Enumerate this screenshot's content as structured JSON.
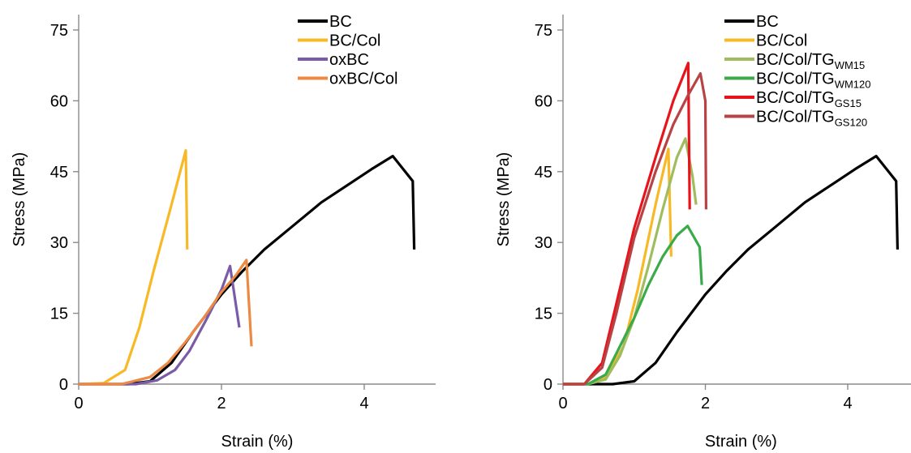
{
  "chart_data": [
    {
      "type": "line",
      "xlabel": "Strain (%)",
      "ylabel": "Stress (MPa)",
      "xlim": [
        0,
        5.0
      ],
      "ylim": [
        0,
        80
      ],
      "xticks": [
        0,
        2,
        4
      ],
      "yticks": [
        0,
        15,
        30,
        45,
        60,
        75
      ],
      "grid": false,
      "legend_position": "top-right",
      "series": [
        {
          "name": "BC",
          "color": "#000000",
          "points": [
            [
              0,
              0
            ],
            [
              0.7,
              0
            ],
            [
              1.0,
              0.6
            ],
            [
              1.3,
              4.5
            ],
            [
              1.6,
              11
            ],
            [
              2.0,
              19
            ],
            [
              2.3,
              24
            ],
            [
              2.6,
              28.5
            ],
            [
              3.0,
              33.5
            ],
            [
              3.4,
              38.5
            ],
            [
              3.8,
              42.5
            ],
            [
              4.1,
              45.5
            ],
            [
              4.4,
              48.3
            ],
            [
              4.68,
              43
            ],
            [
              4.7,
              28.5
            ]
          ]
        },
        {
          "name": "BC/Col",
          "color": "#f7b926",
          "points": [
            [
              0,
              0
            ],
            [
              0.35,
              0.2
            ],
            [
              0.65,
              3
            ],
            [
              0.85,
              12
            ],
            [
              1.05,
              24
            ],
            [
              1.3,
              38
            ],
            [
              1.5,
              49.5
            ],
            [
              1.52,
              28.5
            ]
          ]
        },
        {
          "name": "oxBC",
          "color": "#7a5ba8",
          "points": [
            [
              0,
              0
            ],
            [
              0.8,
              0
            ],
            [
              1.1,
              0.8
            ],
            [
              1.35,
              3
            ],
            [
              1.55,
              7
            ],
            [
              1.8,
              14
            ],
            [
              2.0,
              20
            ],
            [
              2.12,
              25
            ],
            [
              2.25,
              12
            ]
          ]
        },
        {
          "name": "oxBC/Col",
          "color": "#ec8a43",
          "points": [
            [
              0,
              0
            ],
            [
              0.6,
              0
            ],
            [
              1.0,
              1.5
            ],
            [
              1.25,
              4.5
            ],
            [
              1.5,
              9
            ],
            [
              1.75,
              14
            ],
            [
              2.0,
              19.5
            ],
            [
              2.2,
              23
            ],
            [
              2.35,
              26.3
            ],
            [
              2.42,
              8
            ]
          ]
        }
      ]
    },
    {
      "type": "line",
      "xlabel": "Strain (%)",
      "ylabel": "Stress (MPa)",
      "xlim": [
        0,
        5.0
      ],
      "ylim": [
        0,
        80
      ],
      "xticks": [
        0,
        2,
        4
      ],
      "yticks": [
        0,
        15,
        30,
        45,
        60,
        75
      ],
      "grid": false,
      "legend_position": "top-right",
      "series": [
        {
          "name": "BC",
          "color": "#000000",
          "points": [
            [
              0,
              0
            ],
            [
              0.7,
              0
            ],
            [
              1.0,
              0.6
            ],
            [
              1.3,
              4.5
            ],
            [
              1.6,
              11
            ],
            [
              2.0,
              19
            ],
            [
              2.3,
              24
            ],
            [
              2.6,
              28.5
            ],
            [
              3.0,
              33.5
            ],
            [
              3.4,
              38.5
            ],
            [
              3.8,
              42.5
            ],
            [
              4.1,
              45.5
            ],
            [
              4.4,
              48.3
            ],
            [
              4.68,
              43
            ],
            [
              4.7,
              28.5
            ]
          ]
        },
        {
          "name": "BC/Col",
          "color": "#f7b926",
          "points": [
            [
              0,
              0
            ],
            [
              0.35,
              0
            ],
            [
              0.6,
              1.5
            ],
            [
              0.85,
              8
            ],
            [
              1.05,
              20
            ],
            [
              1.3,
              38
            ],
            [
              1.48,
              49.8
            ],
            [
              1.52,
              27
            ]
          ]
        },
        {
          "name": "BC/Col/TG",
          "name_sub": "WM15",
          "color": "#9fbd5e",
          "points": [
            [
              0,
              0
            ],
            [
              0.35,
              0
            ],
            [
              0.6,
              1
            ],
            [
              0.8,
              6
            ],
            [
              1.0,
              14
            ],
            [
              1.2,
              25
            ],
            [
              1.4,
              37
            ],
            [
              1.6,
              48
            ],
            [
              1.72,
              52
            ],
            [
              1.82,
              44
            ],
            [
              1.87,
              38
            ]
          ]
        },
        {
          "name": "BC/Col/TG",
          "name_sub": "WM120",
          "color": "#3aaa4a",
          "points": [
            [
              0,
              0
            ],
            [
              0.35,
              0
            ],
            [
              0.6,
              2
            ],
            [
              0.8,
              8
            ],
            [
              1.0,
              14
            ],
            [
              1.2,
              21
            ],
            [
              1.4,
              27
            ],
            [
              1.6,
              31.5
            ],
            [
              1.75,
              33.5
            ],
            [
              1.92,
              29
            ],
            [
              1.95,
              21
            ]
          ]
        },
        {
          "name": "BC/Col/TG",
          "name_sub": "GS15",
          "color": "#e8141c",
          "points": [
            [
              0,
              0
            ],
            [
              0.3,
              0
            ],
            [
              0.55,
              4.5
            ],
            [
              0.75,
              17
            ],
            [
              1.0,
              33
            ],
            [
              1.3,
              48
            ],
            [
              1.55,
              60
            ],
            [
              1.76,
              68
            ],
            [
              1.78,
              37
            ]
          ]
        },
        {
          "name": "BC/Col/TG",
          "name_sub": "GS120",
          "color": "#b84345",
          "points": [
            [
              0,
              0
            ],
            [
              0.3,
              0
            ],
            [
              0.55,
              3.5
            ],
            [
              0.75,
              15
            ],
            [
              1.0,
              31
            ],
            [
              1.3,
              45
            ],
            [
              1.55,
              55
            ],
            [
              1.75,
              61
            ],
            [
              1.93,
              65.8
            ],
            [
              2.0,
              60
            ],
            [
              2.01,
              37
            ]
          ]
        }
      ]
    }
  ]
}
